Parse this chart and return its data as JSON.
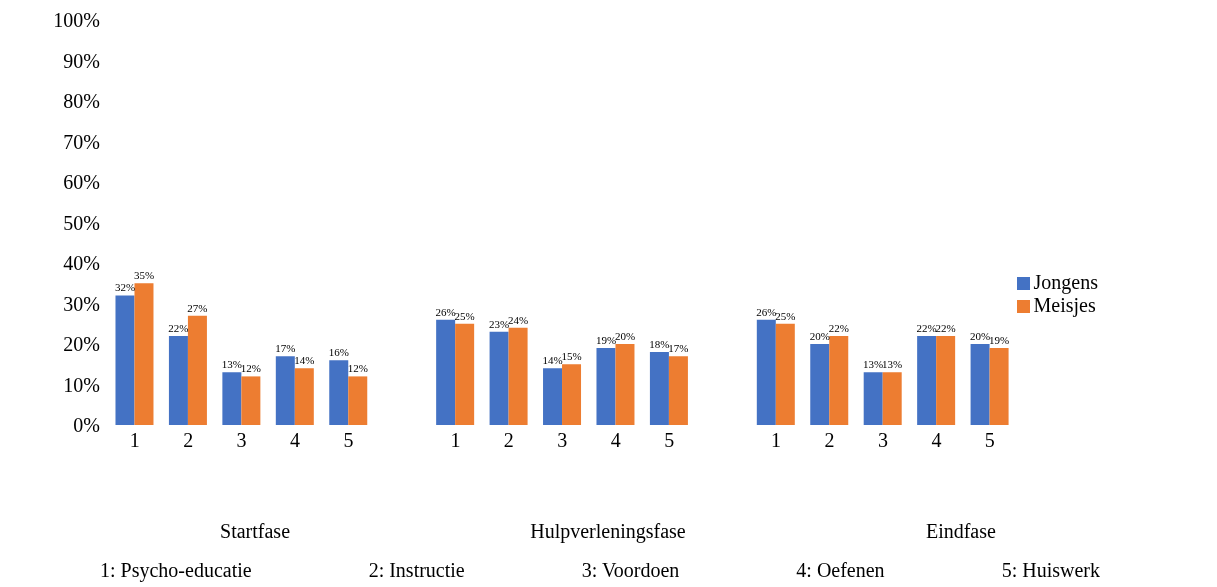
{
  "chart_data": {
    "type": "bar",
    "categories": [
      "1",
      "2",
      "3",
      "4",
      "5",
      null,
      "1",
      "2",
      "3",
      "4",
      "5",
      null,
      "1",
      "2",
      "3",
      "4",
      "5"
    ],
    "series": [
      {
        "name": "Jongens",
        "color": "#4472c4",
        "values": [
          32,
          22,
          13,
          17,
          16,
          null,
          26,
          23,
          14,
          19,
          18,
          null,
          26,
          20,
          13,
          22,
          20
        ],
        "value_labels": [
          "32%",
          "22%",
          "13%",
          "17%",
          "16%",
          null,
          "26%",
          "23%",
          "14%",
          "19%",
          "18%",
          null,
          "26%",
          "20%",
          "13%",
          "22%",
          "20%"
        ]
      },
      {
        "name": "Meisjes",
        "color": "#ed7d31",
        "values": [
          35,
          27,
          12,
          14,
          12,
          null,
          25,
          24,
          15,
          20,
          17,
          null,
          25,
          22,
          13,
          22,
          19
        ],
        "value_labels": [
          "35%",
          "27%",
          "12%",
          "14%",
          "12%",
          null,
          "25%",
          "24%",
          "15%",
          "20%",
          "17%",
          null,
          "25%",
          "22%",
          "13%",
          "22%",
          "19%"
        ]
      }
    ],
    "ylim": [
      0,
      100
    ],
    "yticks": [
      {
        "value": 0,
        "label": "0%"
      },
      {
        "value": 10,
        "label": "10%"
      },
      {
        "value": 20,
        "label": "20%"
      },
      {
        "value": 30,
        "label": "30%"
      },
      {
        "value": 40,
        "label": "40%"
      },
      {
        "value": 50,
        "label": "50%"
      },
      {
        "value": 60,
        "label": "60%"
      },
      {
        "value": 70,
        "label": "70%"
      },
      {
        "value": 80,
        "label": "80%"
      },
      {
        "value": 90,
        "label": "90%"
      },
      {
        "value": 100,
        "label": "100%"
      }
    ],
    "grid": false,
    "legend": "right",
    "annotations": [
      "Startfase",
      "Hulpverleningsfase",
      "Eindfase",
      "1: Psycho-educatie",
      "2: Instructie",
      "3: Voordoen",
      "4: Oefenen",
      "5: Huiswerk"
    ]
  }
}
